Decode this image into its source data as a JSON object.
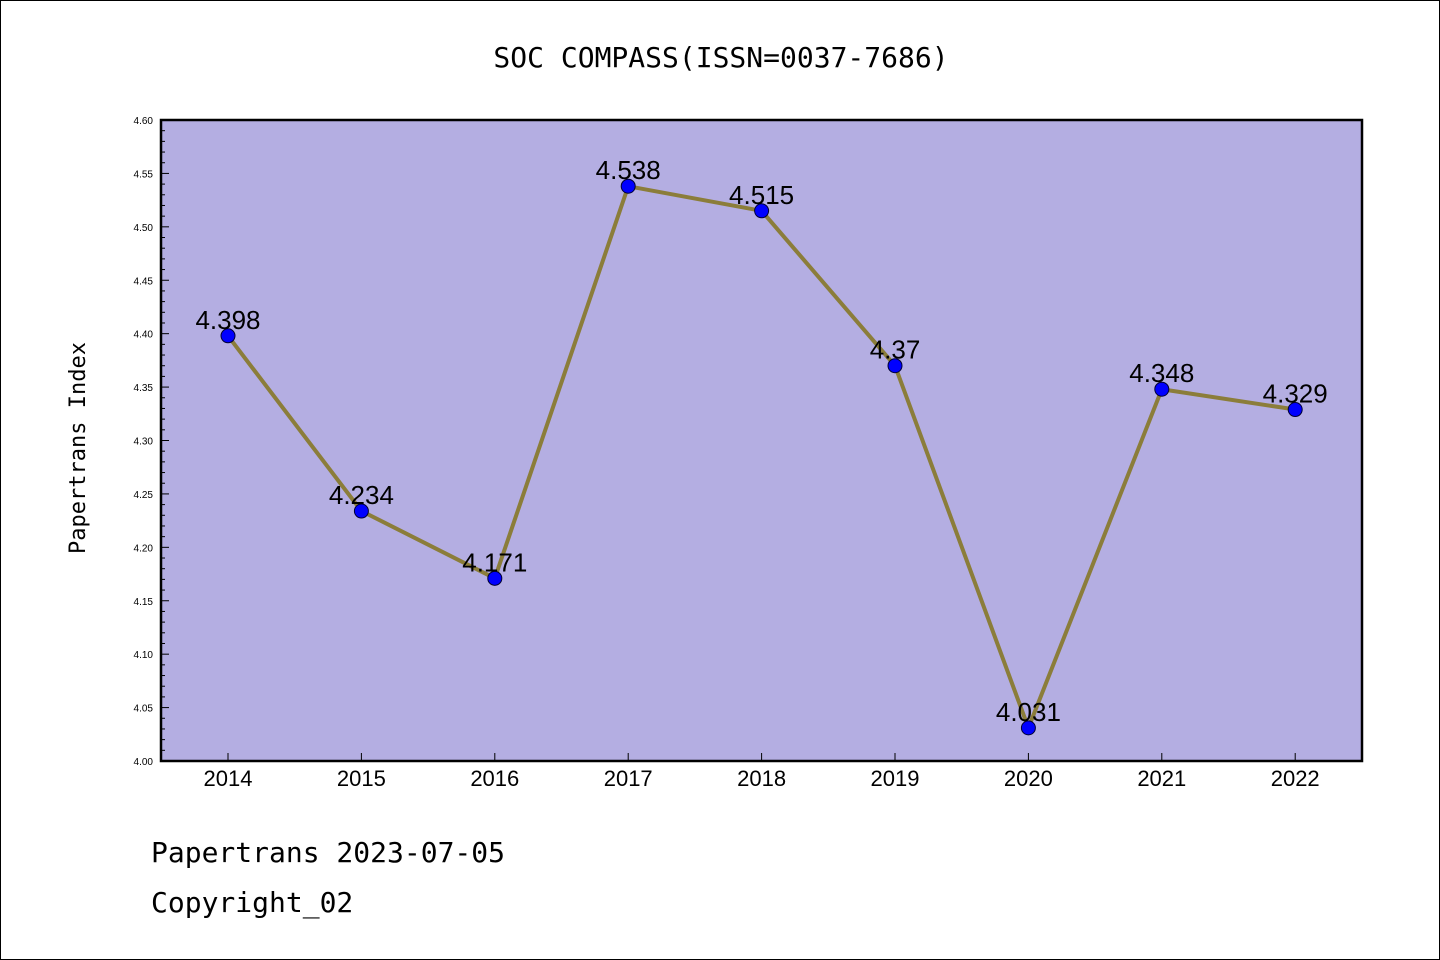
{
  "chart_data": {
    "type": "line",
    "title": "SOC COMPASS(ISSN=0037-7686)",
    "xlabel": "",
    "ylabel": "Papertrans Index",
    "categories": [
      "2014",
      "2015",
      "2016",
      "2017",
      "2018",
      "2019",
      "2020",
      "2021",
      "2022"
    ],
    "values": [
      4.398,
      4.234,
      4.171,
      4.538,
      4.515,
      4.37,
      4.031,
      4.348,
      4.329
    ],
    "value_labels": [
      "4.398",
      "4.234",
      "4.171",
      "4.538",
      "4.515",
      "4.37",
      "4.031",
      "4.348",
      "4.329"
    ],
    "ylim": [
      4.0,
      4.6
    ],
    "yticks": [
      "4.00",
      "4.05",
      "4.10",
      "4.15",
      "4.20",
      "4.25",
      "4.30",
      "4.35",
      "4.40",
      "4.45",
      "4.50",
      "4.55",
      "4.60"
    ],
    "grid": false,
    "legend": "none",
    "colors": {
      "plot_background": "#b4aee2",
      "line": "#8b7d3a",
      "marker": "#0000ff"
    }
  },
  "footer": {
    "line1": "Papertrans 2023-07-05",
    "line2": "Copyright_02"
  }
}
